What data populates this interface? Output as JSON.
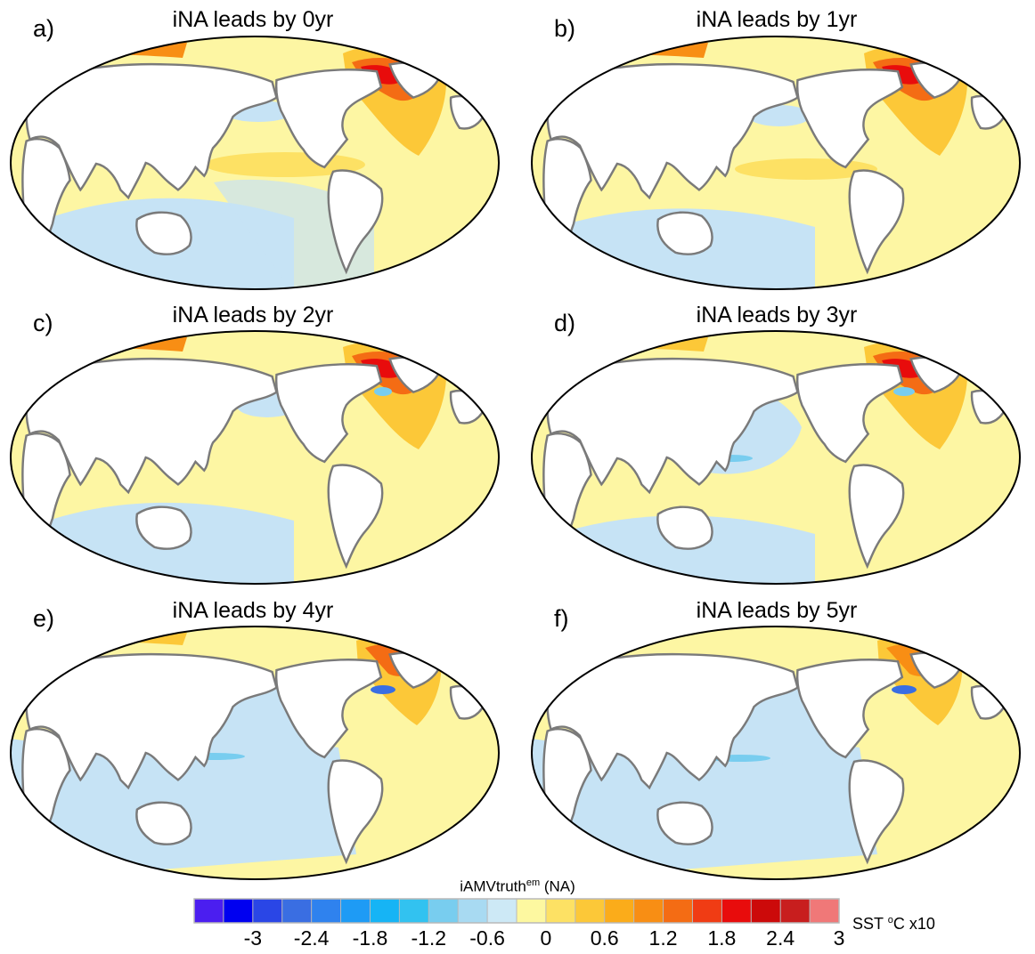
{
  "panels": [
    {
      "letter": "a)",
      "title": "iNA leads by 0yr",
      "lead_years": 0
    },
    {
      "letter": "b)",
      "title": "iNA leads by 1yr",
      "lead_years": 1
    },
    {
      "letter": "c)",
      "title": "iNA leads by 2yr",
      "lead_years": 2
    },
    {
      "letter": "d)",
      "title": "iNA leads by 3yr",
      "lead_years": 3
    },
    {
      "letter": "e)",
      "title": "iNA leads by 4yr",
      "lead_years": 4
    },
    {
      "letter": "f)",
      "title": "iNA leads by 5yr",
      "lead_years": 5
    }
  ],
  "colorbar": {
    "title_main": "iAMVtruth",
    "title_sup": "em",
    "title_suffix": " (NA)",
    "unit_prefix": "SST ",
    "unit_sup": "o",
    "unit_suffix": "C x10",
    "tick_labels": [
      "-3",
      "-2.4",
      "-1.8",
      "-1.2",
      "-0.6",
      "0",
      "0.6",
      "1.2",
      "1.8",
      "2.4",
      "3"
    ],
    "colors": [
      "#4b1ef0",
      "#0000f0",
      "#2a46e6",
      "#3a6ee2",
      "#2f82ee",
      "#1e9bf5",
      "#16b4f5",
      "#32c2f0",
      "#78cdef",
      "#a8daf2",
      "#cde9f6",
      "#fdf8a0",
      "#fde164",
      "#fcc838",
      "#fbac1a",
      "#f88e14",
      "#f46c14",
      "#f03c14",
      "#e80c0c",
      "#cc0a0a",
      "#c81e1e",
      "#f07878"
    ]
  },
  "colors": {
    "land": "#ffffff",
    "coast": "#7a7a7a",
    "border": "#000000",
    "ocean_pos": "#fdf6a3",
    "ocean_neg": "#c6e3f5"
  }
}
